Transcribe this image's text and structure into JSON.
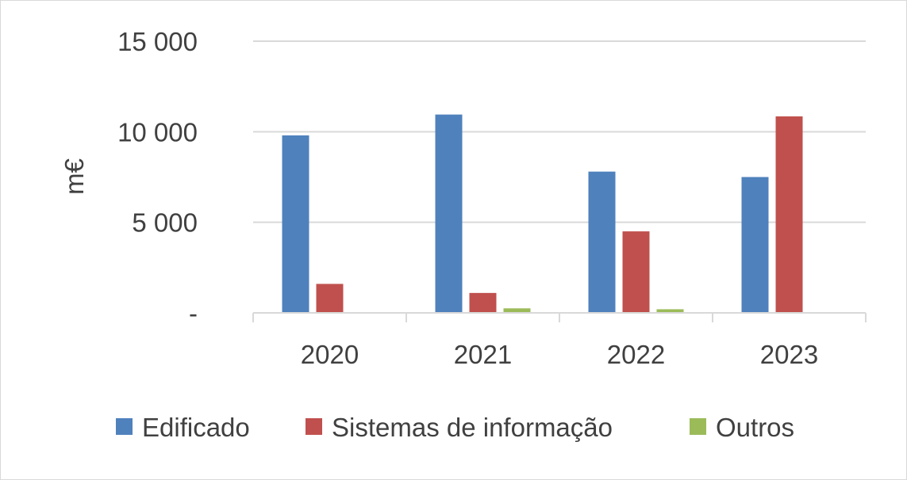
{
  "chart_data": {
    "type": "bar",
    "title": "",
    "xlabel": "",
    "ylabel": "m€",
    "ylim": [
      0,
      15000
    ],
    "yticks": [
      0,
      5000,
      10000,
      15000
    ],
    "ytick_labels": [
      "-",
      "5 000",
      "10 000",
      "15 000"
    ],
    "categories": [
      "2020",
      "2021",
      "2022",
      "2023"
    ],
    "series": [
      {
        "name": "Edificado",
        "color": "#4f81bd",
        "values": [
          9800,
          10950,
          7800,
          7500
        ]
      },
      {
        "name": "Sistemas de informação",
        "color": "#c0504d",
        "values": [
          1600,
          1100,
          4500,
          10850
        ]
      },
      {
        "name": "Outros",
        "color": "#9bbb59",
        "values": [
          0,
          250,
          200,
          0
        ]
      }
    ],
    "grid": true,
    "legend_position": "bottom"
  }
}
